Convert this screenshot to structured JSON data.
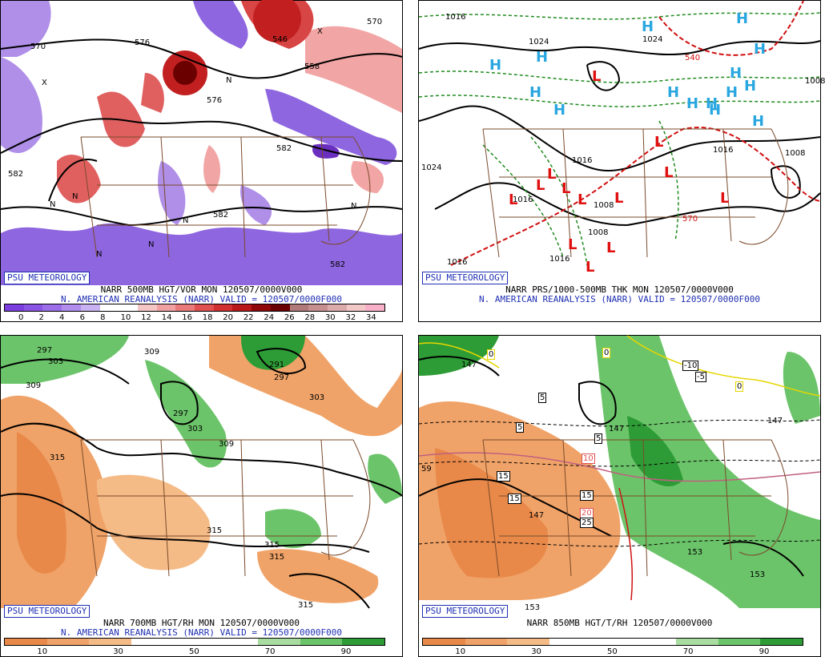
{
  "panels": [
    {
      "id": "p1",
      "badge": "PSU METEOROLOGY",
      "caption1": "NARR 500MB HGT/VOR MON 120507/0000V000",
      "caption2": "N. AMERICAN REANALYSIS (NARR) VALID = 120507/0000F000",
      "colorbar": {
        "colors": [
          "#7b3fe0",
          "#8a55e5",
          "#9c6ee9",
          "#b18ded",
          "#c9b2f2",
          "#ffffff",
          "#ffffff",
          "#f5c6c6",
          "#f0a0a0",
          "#ea7a7a",
          "#e05050",
          "#d03030",
          "#b81818",
          "#900808",
          "#6b0000",
          "#b07a7a",
          "#c79090",
          "#dcacac",
          "#f2c8c8",
          "#f7b0c8"
        ],
        "labels": [
          "0",
          "2",
          "4",
          "6",
          "8",
          "10",
          "12",
          "14",
          "16",
          "18",
          "20",
          "22",
          "24",
          "26",
          "28",
          "30",
          "32",
          "34"
        ]
      },
      "map_labels": [
        "570",
        "582",
        "576",
        "546",
        "558",
        "576",
        "570",
        "582",
        "582",
        "582",
        "N",
        "N",
        "N",
        "N",
        "N",
        "N",
        "N",
        "X",
        "X"
      ]
    },
    {
      "id": "p2",
      "badge": "PSU METEOROLOGY",
      "caption1": "NARR PRS/1000-500MB THK MON 120507/0000V000",
      "caption2": "N. AMERICAN REANALYSIS (NARR) VALID = 120507/0000F000",
      "map_labels": [
        "1016",
        "1024",
        "1024",
        "1024",
        "1016",
        "1016",
        "1008",
        "1008",
        "1016",
        "1016",
        "1008",
        "1008",
        "540",
        "570",
        "1016"
      ],
      "symbols": [
        "H",
        "H",
        "H",
        "H",
        "H",
        "H",
        "H",
        "H",
        "H",
        "H",
        "H",
        "H",
        "H",
        "H",
        "H",
        "L",
        "L",
        "L",
        "L",
        "L",
        "L",
        "L",
        "L",
        "L",
        "L",
        "L",
        "L",
        "L"
      ]
    },
    {
      "id": "p3",
      "badge": "PSU METEOROLOGY",
      "caption1": "NARR 700MB HGT/RH MON 120507/0000V000",
      "caption2": "N. AMERICAN REANALYSIS (NARR) VALID = 120507/0000F000",
      "colorbar": {
        "colors": [
          "#e8894a",
          "#f0a368",
          "#f5bb87",
          "#ffffff",
          "#ffffff",
          "#ffffff",
          "#a8dca0",
          "#6cc46a",
          "#2e9c36"
        ],
        "labels": [
          "10",
          "30",
          "50",
          "70",
          "90"
        ]
      },
      "map_labels": [
        "297",
        "303",
        "309",
        "309",
        "291",
        "297",
        "303",
        "297",
        "303",
        "309",
        "315",
        "315",
        "315",
        "315",
        "315"
      ]
    },
    {
      "id": "p4",
      "badge": "PSU METEOROLOGY",
      "caption1": "NARR 850MB HGT/T/RH 120507/0000V000",
      "colorbar": {
        "colors": [
          "#e8894a",
          "#f0a368",
          "#f5bb87",
          "#ffffff",
          "#ffffff",
          "#ffffff",
          "#a8dca0",
          "#6cc46a",
          "#2e9c36"
        ],
        "labels": [
          "10",
          "30",
          "50",
          "70",
          "90"
        ]
      },
      "map_labels": [
        "147",
        "147",
        "147",
        "147",
        "153",
        "153",
        "153",
        "59"
      ],
      "boxed_labels": [
        "-10",
        "-5",
        "5",
        "5",
        "5",
        "10",
        "15",
        "15",
        "15",
        "20",
        "25",
        "0",
        "0",
        "0"
      ]
    }
  ]
}
